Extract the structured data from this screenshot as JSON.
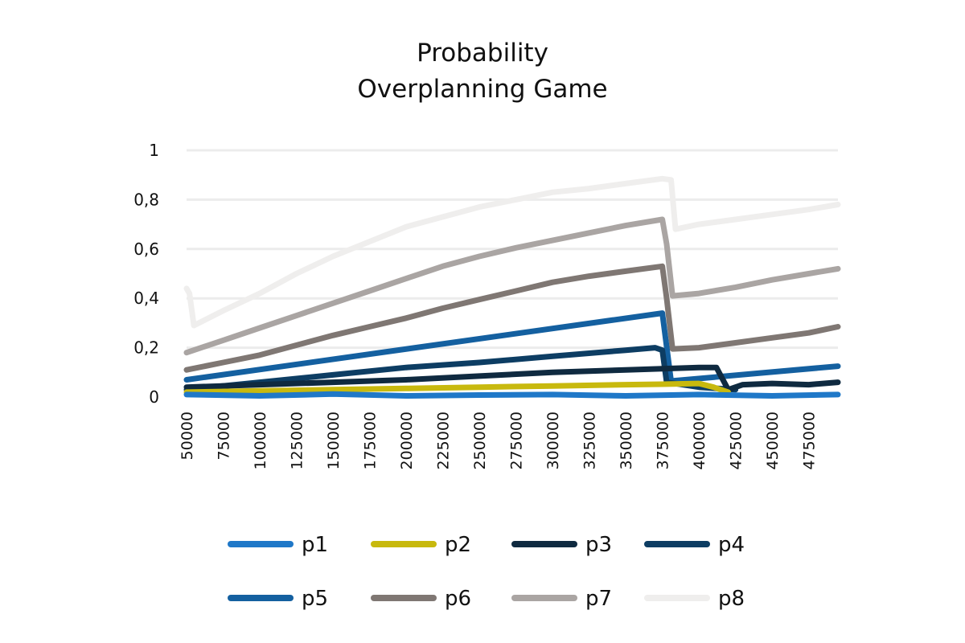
{
  "chart_data": {
    "type": "line",
    "title": [
      "Probability",
      "Overplanning Game"
    ],
    "xlabel": "",
    "ylabel": "",
    "xlim": [
      50000,
      495000
    ],
    "ylim": [
      0,
      1
    ],
    "y_ticks": [
      0,
      0.2,
      0.4,
      0.6,
      0.8,
      1
    ],
    "y_tick_labels": [
      "0",
      "0,2",
      "0,4",
      "0,6",
      "0,8",
      "1"
    ],
    "x_ticks": [
      50000,
      75000,
      100000,
      125000,
      150000,
      175000,
      200000,
      225000,
      250000,
      275000,
      300000,
      325000,
      350000,
      375000,
      400000,
      425000,
      450000,
      475000
    ],
    "x_tick_labels": [
      "50000",
      "75000",
      "100000",
      "125000",
      "150000",
      "175000",
      "200000",
      "225000",
      "250000",
      "275000",
      "300000",
      "325000",
      "350000",
      "375000",
      "400000",
      "425000",
      "450000",
      "475000"
    ],
    "grid": true,
    "legend_position": "bottom",
    "series": [
      {
        "name": "p1",
        "color": "#1f78c8",
        "x": [
          50000,
          100000,
          150000,
          200000,
          250000,
          300000,
          350000,
          400000,
          450000,
          495000
        ],
        "values": [
          0.01,
          0.005,
          0.012,
          0.005,
          0.008,
          0.01,
          0.005,
          0.01,
          0.005,
          0.01
        ]
      },
      {
        "name": "p2",
        "color": "#c8b90e",
        "x": [
          50000,
          100000,
          150000,
          200000,
          250000,
          300000,
          350000,
          375000,
          400000,
          410000,
          420000
        ],
        "values": [
          0.02,
          0.025,
          0.03,
          0.035,
          0.04,
          0.045,
          0.05,
          0.052,
          0.055,
          0.04,
          0.02
        ]
      },
      {
        "name": "p3",
        "color": "#0f2a40",
        "x": [
          50000,
          100000,
          150000,
          200000,
          250000,
          300000,
          350000,
          375000,
          400000,
          412000,
          420000,
          430000,
          450000,
          475000,
          495000
        ],
        "values": [
          0.04,
          0.05,
          0.06,
          0.07,
          0.085,
          0.1,
          0.11,
          0.115,
          0.12,
          0.12,
          0.03,
          0.05,
          0.055,
          0.05,
          0.06
        ]
      },
      {
        "name": "p4",
        "color": "#0d3d63",
        "x": [
          50000,
          100000,
          150000,
          200000,
          250000,
          300000,
          350000,
          370000,
          375000,
          378000,
          400000,
          425000
        ],
        "values": [
          0.03,
          0.06,
          0.09,
          0.12,
          0.14,
          0.165,
          0.19,
          0.2,
          0.19,
          0.06,
          0.04,
          0.03
        ]
      },
      {
        "name": "p5",
        "color": "#1460a0",
        "x": [
          50000,
          375000,
          381000,
          495000
        ],
        "values": [
          0.07,
          0.34,
          0.065,
          0.125
        ]
      },
      {
        "name": "p6",
        "color": "#7f7773",
        "x": [
          50000,
          75000,
          100000,
          125000,
          150000,
          175000,
          200000,
          225000,
          250000,
          275000,
          300000,
          325000,
          350000,
          375000,
          378000,
          382000,
          400000,
          425000,
          450000,
          475000,
          495000
        ],
        "values": [
          0.11,
          0.14,
          0.17,
          0.21,
          0.25,
          0.285,
          0.32,
          0.36,
          0.395,
          0.43,
          0.465,
          0.49,
          0.51,
          0.53,
          0.4,
          0.195,
          0.2,
          0.22,
          0.24,
          0.26,
          0.285
        ]
      },
      {
        "name": "p7",
        "color": "#aaa5a3",
        "x": [
          50000,
          75000,
          100000,
          125000,
          150000,
          175000,
          200000,
          225000,
          250000,
          275000,
          300000,
          325000,
          350000,
          375000,
          378000,
          382000,
          400000,
          425000,
          450000,
          475000,
          495000
        ],
        "values": [
          0.18,
          0.23,
          0.28,
          0.33,
          0.38,
          0.43,
          0.48,
          0.53,
          0.57,
          0.605,
          0.635,
          0.665,
          0.695,
          0.72,
          0.62,
          0.41,
          0.42,
          0.445,
          0.475,
          0.5,
          0.52
        ]
      },
      {
        "name": "p8",
        "color": "#efeeed",
        "x": [
          50000,
          52000,
          55000,
          75000,
          100000,
          125000,
          150000,
          175000,
          200000,
          225000,
          250000,
          275000,
          300000,
          325000,
          350000,
          375000,
          381000,
          384000,
          400000,
          425000,
          450000,
          475000,
          495000
        ],
        "values": [
          0.44,
          0.42,
          0.29,
          0.35,
          0.42,
          0.5,
          0.57,
          0.63,
          0.69,
          0.73,
          0.77,
          0.8,
          0.83,
          0.845,
          0.865,
          0.885,
          0.88,
          0.68,
          0.7,
          0.72,
          0.74,
          0.76,
          0.78
        ]
      }
    ]
  }
}
